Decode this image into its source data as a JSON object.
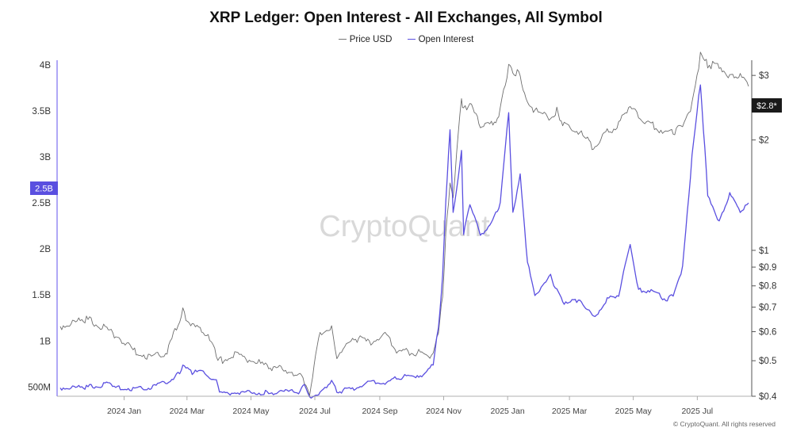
{
  "chart_data": {
    "type": "line",
    "title": "XRP Ledger: Open Interest - All Exchanges, All Symbol",
    "watermark": "CryptoQuant",
    "footer": "© CryptoQuant. All rights reserved",
    "legend": [
      {
        "name": "Price USD",
        "color": "#6e6e6e"
      },
      {
        "name": "Open Interest",
        "color": "#5a4fe0"
      }
    ],
    "x_ticks": [
      "2024 Jan",
      "2024 Mar",
      "2024 May",
      "2024 Jul",
      "2024 Sep",
      "2024 Nov",
      "2025 Jan",
      "2025 Mar",
      "2025 May",
      "2025 Jul"
    ],
    "left_axis": {
      "ticks": [
        "500M",
        "1B",
        "1.5B",
        "2B",
        "2.5B",
        "3B",
        "3.5B",
        "4B"
      ],
      "tick_values": [
        0.5,
        1,
        1.5,
        2,
        2.5,
        3,
        3.5,
        4
      ],
      "unit": "B",
      "range": [
        0.4,
        4.05
      ]
    },
    "right_axis": {
      "scale": "log",
      "ticks": [
        "$0.4",
        "$0.5",
        "$0.6",
        "$0.7",
        "$0.8",
        "$0.9",
        "$1",
        "$2",
        "$3"
      ],
      "tick_values": [
        0.4,
        0.5,
        0.6,
        0.7,
        0.8,
        0.9,
        1,
        2,
        3
      ],
      "range": [
        0.4,
        3.3
      ]
    },
    "current_open_interest": "2.5B",
    "current_price": "$2.8*",
    "series": [
      {
        "name": "Open Interest",
        "axis": "left",
        "color": "#5a4fe0",
        "x": [
          "2023-11-15",
          "2023-12-10",
          "2023-12-25",
          "2024-01-01",
          "2024-01-10",
          "2024-01-25",
          "2024-02-10",
          "2024-02-25",
          "2024-03-05",
          "2024-03-11",
          "2024-03-20",
          "2024-04-01",
          "2024-04-12",
          "2024-04-15",
          "2024-05-01",
          "2024-06-01",
          "2024-06-20",
          "2024-07-01",
          "2024-07-05",
          "2024-07-10",
          "2024-07-20",
          "2024-07-31",
          "2024-08-05",
          "2024-08-20",
          "2024-09-05",
          "2024-09-20",
          "2024-10-01",
          "2024-10-15",
          "2024-10-28",
          "2024-11-05",
          "2024-11-10",
          "2024-11-14",
          "2024-11-17",
          "2024-11-21",
          "2024-11-24",
          "2024-12-02",
          "2024-12-04",
          "2024-12-10",
          "2024-12-20",
          "2025-01-01",
          "2025-01-08",
          "2025-01-16",
          "2025-01-20",
          "2025-01-27",
          "2025-02-03",
          "2025-02-10",
          "2025-02-25",
          "2025-03-03",
          "2025-03-10",
          "2025-03-25",
          "2025-04-07",
          "2025-04-20",
          "2025-05-01",
          "2025-05-12",
          "2025-05-20",
          "2025-06-01",
          "2025-06-15",
          "2025-06-22",
          "2025-07-01",
          "2025-07-10",
          "2025-07-18",
          "2025-07-25",
          "2025-08-05",
          "2025-08-15",
          "2025-08-25",
          "2025-09-02"
        ],
        "values": [
          0.49,
          0.5,
          0.52,
          0.55,
          0.49,
          0.48,
          0.5,
          0.56,
          0.62,
          0.72,
          0.66,
          0.66,
          0.56,
          0.43,
          0.44,
          0.44,
          0.45,
          0.45,
          0.55,
          0.4,
          0.44,
          0.56,
          0.45,
          0.48,
          0.55,
          0.54,
          0.6,
          0.62,
          0.64,
          0.75,
          1.15,
          1.7,
          2.5,
          3.3,
          2.4,
          3.05,
          2.15,
          2.5,
          2.15,
          2.3,
          2.5,
          3.5,
          2.4,
          2.8,
          1.85,
          1.5,
          1.7,
          1.55,
          1.4,
          1.45,
          1.25,
          1.45,
          1.5,
          2.05,
          1.55,
          1.55,
          1.45,
          1.5,
          1.8,
          3.0,
          3.8,
          2.6,
          2.3,
          2.6,
          2.4,
          2.5
        ]
      },
      {
        "name": "Price USD",
        "axis": "right",
        "color": "#6e6e6e",
        "x": [
          "2023-11-15",
          "2023-12-10",
          "2023-12-25",
          "2024-01-10",
          "2024-01-25",
          "2024-02-10",
          "2024-02-25",
          "2024-03-05",
          "2024-03-11",
          "2024-03-20",
          "2024-04-01",
          "2024-04-12",
          "2024-04-15",
          "2024-05-01",
          "2024-06-01",
          "2024-06-20",
          "2024-07-01",
          "2024-07-05",
          "2024-07-10",
          "2024-07-20",
          "2024-07-31",
          "2024-08-05",
          "2024-08-20",
          "2024-09-05",
          "2024-09-20",
          "2024-10-01",
          "2024-10-15",
          "2024-10-28",
          "2024-11-05",
          "2024-11-10",
          "2024-11-14",
          "2024-11-17",
          "2024-11-21",
          "2024-11-24",
          "2024-12-02",
          "2024-12-04",
          "2024-12-10",
          "2024-12-20",
          "2025-01-01",
          "2025-01-08",
          "2025-01-16",
          "2025-01-20",
          "2025-01-27",
          "2025-02-03",
          "2025-02-10",
          "2025-02-25",
          "2025-03-03",
          "2025-03-10",
          "2025-03-25",
          "2025-04-07",
          "2025-04-20",
          "2025-05-01",
          "2025-05-12",
          "2025-05-20",
          "2025-06-01",
          "2025-06-15",
          "2025-06-22",
          "2025-07-01",
          "2025-07-10",
          "2025-07-18",
          "2025-07-25",
          "2025-08-05",
          "2025-08-15",
          "2025-08-25",
          "2025-09-02"
        ],
        "values": [
          0.62,
          0.65,
          0.62,
          0.58,
          0.53,
          0.51,
          0.53,
          0.62,
          0.68,
          0.62,
          0.6,
          0.52,
          0.5,
          0.52,
          0.48,
          0.47,
          0.46,
          0.43,
          0.41,
          0.6,
          0.62,
          0.5,
          0.58,
          0.56,
          0.59,
          0.53,
          0.53,
          0.52,
          0.52,
          0.6,
          0.75,
          1.1,
          1.5,
          1.4,
          2.6,
          2.4,
          2.5,
          2.2,
          2.2,
          2.4,
          3.2,
          3.1,
          3.0,
          2.5,
          2.4,
          2.3,
          2.4,
          2.2,
          2.1,
          1.9,
          2.1,
          2.2,
          2.5,
          2.3,
          2.2,
          2.1,
          2.1,
          2.2,
          2.5,
          3.4,
          3.2,
          3.2,
          3.0,
          3.0,
          2.8
        ]
      }
    ]
  }
}
